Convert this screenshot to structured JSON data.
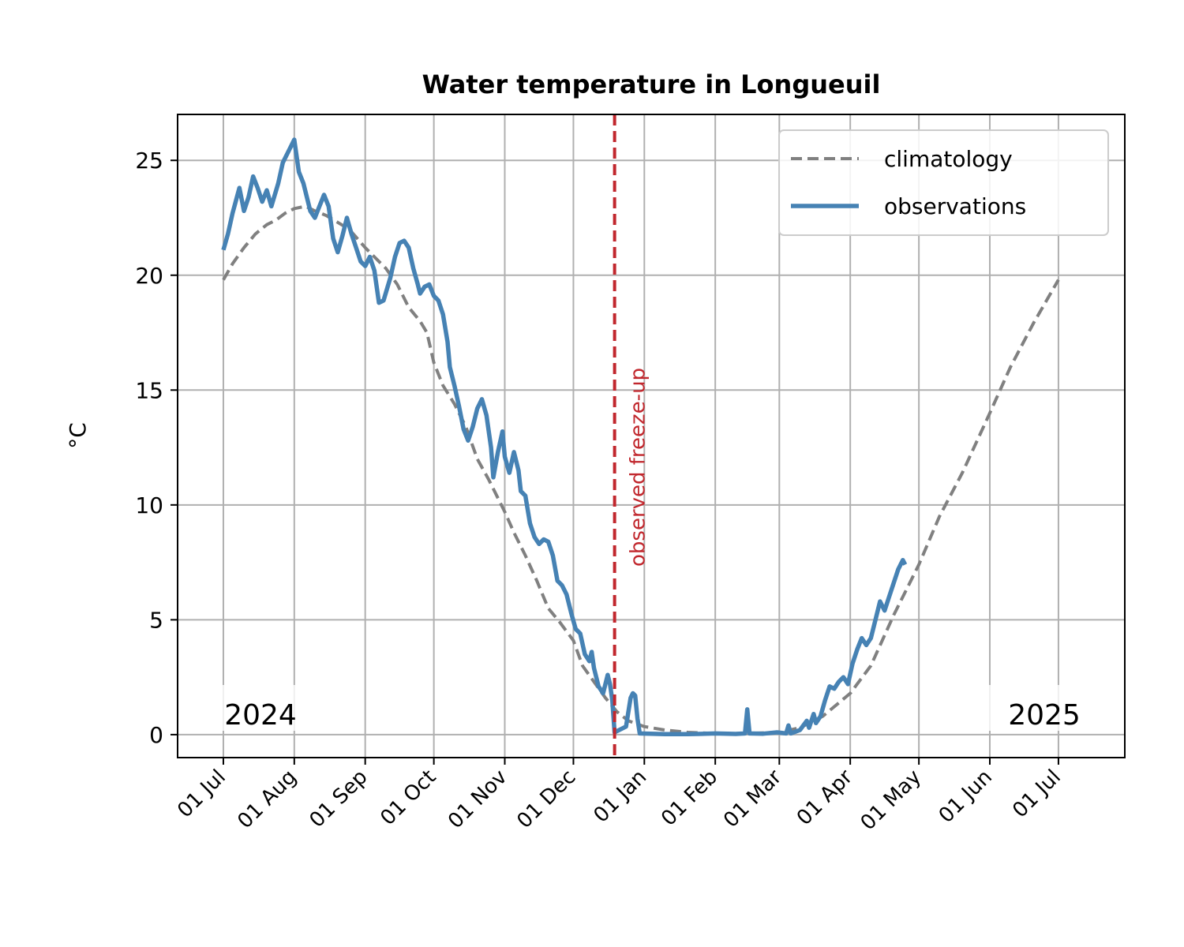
{
  "chart_data": {
    "type": "line",
    "title": "Water temperature in Longueuil",
    "xlabel": "",
    "ylabel": "°C",
    "xlim": [
      "2024-06-11",
      "2025-07-30"
    ],
    "ylim": [
      -1,
      27
    ],
    "grid": true,
    "legend_position": "upper right",
    "x_ticks": [
      {
        "date": "2024-07-01",
        "label": "01 Jul"
      },
      {
        "date": "2024-08-01",
        "label": "01 Aug"
      },
      {
        "date": "2024-09-01",
        "label": "01 Sep"
      },
      {
        "date": "2024-10-01",
        "label": "01 Oct"
      },
      {
        "date": "2024-11-01",
        "label": "01 Nov"
      },
      {
        "date": "2024-12-01",
        "label": "01 Dec"
      },
      {
        "date": "2025-01-01",
        "label": "01 Jan"
      },
      {
        "date": "2025-02-01",
        "label": "01 Feb"
      },
      {
        "date": "2025-03-01",
        "label": "01 Mar"
      },
      {
        "date": "2025-04-01",
        "label": "01 Apr"
      },
      {
        "date": "2025-05-01",
        "label": "01 May"
      },
      {
        "date": "2025-06-01",
        "label": "01 Jun"
      },
      {
        "date": "2025-07-01",
        "label": "01 Jul"
      }
    ],
    "y_ticks": [
      0,
      5,
      10,
      15,
      20,
      25
    ],
    "series": [
      {
        "name": "climatology",
        "style": "dashed",
        "color": "#808080",
        "points": [
          [
            "2024-07-01",
            19.8
          ],
          [
            "2024-07-05",
            20.5
          ],
          [
            "2024-07-10",
            21.2
          ],
          [
            "2024-07-15",
            21.8
          ],
          [
            "2024-07-20",
            22.2
          ],
          [
            "2024-07-24",
            22.4
          ],
          [
            "2024-07-28",
            22.7
          ],
          [
            "2024-08-01",
            22.9
          ],
          [
            "2024-08-06",
            23.0
          ],
          [
            "2024-08-10",
            22.8
          ],
          [
            "2024-08-15",
            22.6
          ],
          [
            "2024-08-20",
            22.3
          ],
          [
            "2024-08-25",
            22.0
          ],
          [
            "2024-09-01",
            21.2
          ],
          [
            "2024-09-05",
            20.8
          ],
          [
            "2024-09-10",
            20.3
          ],
          [
            "2024-09-15",
            19.6
          ],
          [
            "2024-09-20",
            18.6
          ],
          [
            "2024-09-25",
            18.0
          ],
          [
            "2024-09-28",
            17.5
          ],
          [
            "2024-10-01",
            16.2
          ],
          [
            "2024-10-05",
            15.2
          ],
          [
            "2024-10-10",
            14.4
          ],
          [
            "2024-10-15",
            13.4
          ],
          [
            "2024-10-20",
            12.0
          ],
          [
            "2024-10-25",
            11.1
          ],
          [
            "2024-11-01",
            9.7
          ],
          [
            "2024-11-05",
            8.8
          ],
          [
            "2024-11-10",
            7.8
          ],
          [
            "2024-11-15",
            6.7
          ],
          [
            "2024-11-20",
            5.5
          ],
          [
            "2024-11-25",
            4.9
          ],
          [
            "2024-12-01",
            4.1
          ],
          [
            "2024-12-05",
            3.0
          ],
          [
            "2024-12-10",
            2.3
          ],
          [
            "2024-12-15",
            1.6
          ],
          [
            "2024-12-20",
            1.0
          ],
          [
            "2024-12-25",
            0.6
          ],
          [
            "2025-01-01",
            0.35
          ],
          [
            "2025-01-10",
            0.2
          ],
          [
            "2025-01-20",
            0.1
          ],
          [
            "2025-02-01",
            0.05
          ],
          [
            "2025-02-15",
            0.05
          ],
          [
            "2025-03-01",
            0.1
          ],
          [
            "2025-03-10",
            0.3
          ],
          [
            "2025-03-20",
            0.8
          ],
          [
            "2025-04-01",
            1.8
          ],
          [
            "2025-04-10",
            3.0
          ],
          [
            "2025-04-20",
            5.2
          ],
          [
            "2025-05-01",
            7.4
          ],
          [
            "2025-05-10",
            9.5
          ],
          [
            "2025-05-20",
            11.4
          ],
          [
            "2025-06-01",
            14.0
          ],
          [
            "2025-06-10",
            16.0
          ],
          [
            "2025-06-20",
            17.9
          ],
          [
            "2025-07-01",
            19.8
          ]
        ]
      },
      {
        "name": "observations",
        "style": "solid",
        "color": "#4682b4",
        "points": [
          [
            "2024-07-01",
            21.1
          ],
          [
            "2024-07-03",
            21.8
          ],
          [
            "2024-07-05",
            22.7
          ],
          [
            "2024-07-08",
            23.8
          ],
          [
            "2024-07-10",
            22.8
          ],
          [
            "2024-07-12",
            23.4
          ],
          [
            "2024-07-14",
            24.3
          ],
          [
            "2024-07-16",
            23.8
          ],
          [
            "2024-07-18",
            23.2
          ],
          [
            "2024-07-20",
            23.7
          ],
          [
            "2024-07-22",
            23.0
          ],
          [
            "2024-07-25",
            24.0
          ],
          [
            "2024-07-27",
            24.9
          ],
          [
            "2024-07-30",
            25.5
          ],
          [
            "2024-08-01",
            25.9
          ],
          [
            "2024-08-03",
            24.5
          ],
          [
            "2024-08-05",
            24.0
          ],
          [
            "2024-08-08",
            22.8
          ],
          [
            "2024-08-10",
            22.5
          ],
          [
            "2024-08-12",
            23.0
          ],
          [
            "2024-08-14",
            23.5
          ],
          [
            "2024-08-16",
            23.0
          ],
          [
            "2024-08-18",
            21.6
          ],
          [
            "2024-08-20",
            21.0
          ],
          [
            "2024-08-22",
            21.7
          ],
          [
            "2024-08-24",
            22.5
          ],
          [
            "2024-08-26",
            21.8
          ],
          [
            "2024-08-28",
            21.2
          ],
          [
            "2024-08-30",
            20.6
          ],
          [
            "2024-09-01",
            20.4
          ],
          [
            "2024-09-03",
            20.8
          ],
          [
            "2024-09-05",
            20.2
          ],
          [
            "2024-09-07",
            18.8
          ],
          [
            "2024-09-09",
            18.9
          ],
          [
            "2024-09-12",
            19.9
          ],
          [
            "2024-09-14",
            20.8
          ],
          [
            "2024-09-16",
            21.4
          ],
          [
            "2024-09-18",
            21.5
          ],
          [
            "2024-09-20",
            21.2
          ],
          [
            "2024-09-22",
            20.3
          ],
          [
            "2024-09-24",
            19.6
          ],
          [
            "2024-09-25",
            19.2
          ],
          [
            "2024-09-27",
            19.5
          ],
          [
            "2024-09-29",
            19.6
          ],
          [
            "2024-10-01",
            19.1
          ],
          [
            "2024-10-03",
            18.9
          ],
          [
            "2024-10-05",
            18.3
          ],
          [
            "2024-10-07",
            17.1
          ],
          [
            "2024-10-08",
            16.0
          ],
          [
            "2024-10-10",
            15.2
          ],
          [
            "2024-10-12",
            14.3
          ],
          [
            "2024-10-14",
            13.3
          ],
          [
            "2024-10-16",
            12.8
          ],
          [
            "2024-10-18",
            13.4
          ],
          [
            "2024-10-20",
            14.2
          ],
          [
            "2024-10-22",
            14.6
          ],
          [
            "2024-10-24",
            13.9
          ],
          [
            "2024-10-26",
            12.5
          ],
          [
            "2024-10-27",
            11.2
          ],
          [
            "2024-10-29",
            12.3
          ],
          [
            "2024-10-31",
            13.2
          ],
          [
            "2024-11-01",
            12.1
          ],
          [
            "2024-11-03",
            11.4
          ],
          [
            "2024-11-05",
            12.3
          ],
          [
            "2024-11-07",
            11.5
          ],
          [
            "2024-11-08",
            10.6
          ],
          [
            "2024-11-10",
            10.4
          ],
          [
            "2024-11-12",
            9.2
          ],
          [
            "2024-11-14",
            8.6
          ],
          [
            "2024-11-16",
            8.3
          ],
          [
            "2024-11-18",
            8.5
          ],
          [
            "2024-11-20",
            8.4
          ],
          [
            "2024-11-22",
            7.8
          ],
          [
            "2024-11-24",
            6.7
          ],
          [
            "2024-11-26",
            6.5
          ],
          [
            "2024-11-28",
            6.1
          ],
          [
            "2024-11-30",
            5.3
          ],
          [
            "2024-12-02",
            4.6
          ],
          [
            "2024-12-04",
            4.4
          ],
          [
            "2024-12-06",
            3.5
          ],
          [
            "2024-12-08",
            3.2
          ],
          [
            "2024-12-09",
            3.6
          ],
          [
            "2024-12-10",
            2.9
          ],
          [
            "2024-12-12",
            2.1
          ],
          [
            "2024-12-14",
            1.8
          ],
          [
            "2024-12-16",
            2.6
          ],
          [
            "2024-12-17",
            2.2
          ],
          [
            "2024-12-18",
            1.5
          ],
          [
            "2024-12-19",
            0.1
          ],
          [
            "2024-12-21",
            0.2
          ],
          [
            "2024-12-24",
            0.35
          ],
          [
            "2024-12-26",
            1.6
          ],
          [
            "2024-12-27",
            1.8
          ],
          [
            "2024-12-28",
            1.7
          ],
          [
            "2024-12-29",
            0.7
          ],
          [
            "2024-12-30",
            0.05
          ],
          [
            "2025-01-10",
            0.02
          ],
          [
            "2025-01-20",
            0.02
          ],
          [
            "2025-02-01",
            0.05
          ],
          [
            "2025-02-10",
            0.03
          ],
          [
            "2025-02-14",
            0.05
          ],
          [
            "2025-02-15",
            1.1
          ],
          [
            "2025-02-16",
            0.05
          ],
          [
            "2025-02-22",
            0.04
          ],
          [
            "2025-02-28",
            0.1
          ],
          [
            "2025-03-04",
            0.05
          ],
          [
            "2025-03-05",
            0.4
          ],
          [
            "2025-03-06",
            0.05
          ],
          [
            "2025-03-10",
            0.2
          ],
          [
            "2025-03-13",
            0.6
          ],
          [
            "2025-03-14",
            0.3
          ],
          [
            "2025-03-16",
            0.9
          ],
          [
            "2025-03-17",
            0.5
          ],
          [
            "2025-03-19",
            0.8
          ],
          [
            "2025-03-21",
            1.5
          ],
          [
            "2025-03-23",
            2.1
          ],
          [
            "2025-03-25",
            2.0
          ],
          [
            "2025-03-27",
            2.3
          ],
          [
            "2025-03-29",
            2.5
          ],
          [
            "2025-03-31",
            2.2
          ],
          [
            "2025-04-02",
            3.1
          ],
          [
            "2025-04-04",
            3.7
          ],
          [
            "2025-04-06",
            4.2
          ],
          [
            "2025-04-08",
            3.9
          ],
          [
            "2025-04-10",
            4.2
          ],
          [
            "2025-04-12",
            5.0
          ],
          [
            "2025-04-14",
            5.8
          ],
          [
            "2025-04-16",
            5.4
          ],
          [
            "2025-04-18",
            6.0
          ],
          [
            "2025-04-20",
            6.6
          ],
          [
            "2025-04-22",
            7.2
          ],
          [
            "2025-04-24",
            7.6
          ],
          [
            "2025-04-25",
            7.4
          ]
        ]
      }
    ],
    "annotations": [
      {
        "type": "vline",
        "date": "2024-12-19",
        "label": "observed freeze-up",
        "color": "#c1272d",
        "style": "dashed"
      },
      {
        "type": "text",
        "text": "2024"
      },
      {
        "type": "text",
        "text": "2025"
      }
    ]
  }
}
